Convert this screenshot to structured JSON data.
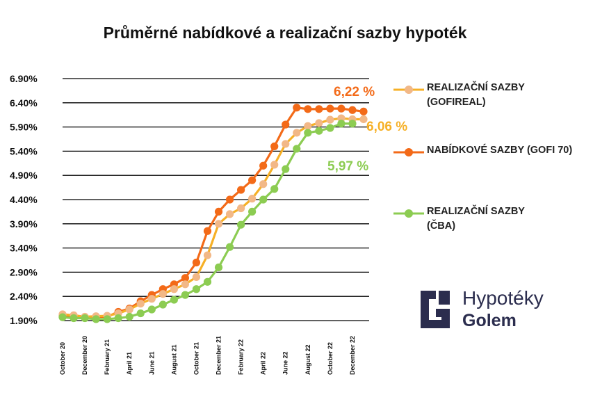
{
  "chart_data": {
    "type": "line",
    "title": "Průměrné nabídkové a realizační sazby hypoték",
    "y_ticks": [
      "1.90%",
      "2.40%",
      "2.90%",
      "3.40%",
      "3.90%",
      "4.40%",
      "4.90%",
      "5.40%",
      "5.90%",
      "6.40%",
      "6.90%"
    ],
    "ylim": [
      1.9,
      6.9
    ],
    "grid": true,
    "x": [
      "October 20",
      "November 20",
      "December 20",
      "January 21",
      "February 21",
      "March 21",
      "April 21",
      "May 21",
      "June 21",
      "July 21",
      "August 21",
      "September 21",
      "October 21",
      "November 21",
      "December 21",
      "January 22",
      "February 22",
      "March 22",
      "April 22",
      "May 22",
      "June 22",
      "July 22",
      "August 22",
      "September 22",
      "October 22",
      "November 22",
      "December 22",
      "January 23"
    ],
    "x_tick_labels": [
      "October 20",
      "",
      "December 20",
      "",
      "February 21",
      "",
      "April 21",
      "",
      "June 21",
      "",
      "August 21",
      "",
      "October 21",
      "",
      "December 21",
      "",
      "February 22",
      "",
      "April 22",
      "",
      "June 22",
      "",
      "August 22",
      "",
      "October 22",
      "",
      "December 22",
      ""
    ],
    "legend_position": "right",
    "series": [
      {
        "name": "REALIZAČNÍ SAZBY (GOFIREAL)",
        "color": "#f6b026",
        "marker_color": "#f2b887",
        "values": [
          2.03,
          2.01,
          1.98,
          1.99,
          2.0,
          2.05,
          2.13,
          2.25,
          2.35,
          2.45,
          2.55,
          2.65,
          2.8,
          3.25,
          3.9,
          4.1,
          4.22,
          4.42,
          4.72,
          5.12,
          5.55,
          5.78,
          5.92,
          5.98,
          6.05,
          6.08,
          6.06,
          6.06
        ],
        "end_label": "6,06 %",
        "end_label_color": "#f6b026"
      },
      {
        "name": "NABÍDKOVÉ SAZBY (GOFI 70)",
        "color": "#f36a18",
        "marker_color": "#f36a18",
        "values": [
          2.0,
          1.97,
          1.97,
          1.98,
          1.98,
          2.08,
          2.15,
          2.3,
          2.43,
          2.55,
          2.65,
          2.78,
          3.1,
          3.75,
          4.15,
          4.4,
          4.6,
          4.8,
          5.1,
          5.5,
          5.95,
          6.3,
          6.27,
          6.27,
          6.28,
          6.28,
          6.25,
          6.22
        ],
        "end_label": "6,22 %",
        "end_label_color": "#f36a18"
      },
      {
        "name": "REALIZAČNÍ SAZBY (ČBA)",
        "color": "#8ccc52",
        "marker_color": "#8ccc52",
        "values": [
          1.97,
          1.95,
          1.95,
          1.93,
          1.93,
          1.95,
          1.98,
          2.05,
          2.13,
          2.23,
          2.33,
          2.43,
          2.55,
          2.7,
          3.0,
          3.42,
          3.88,
          4.15,
          4.4,
          4.62,
          5.03,
          5.45,
          5.78,
          5.82,
          5.88,
          5.97,
          5.97,
          null
        ],
        "end_label": "5,97 %",
        "end_label_color": "#8ccc52"
      }
    ]
  },
  "logo": {
    "top_text": "Hypotéky",
    "bottom_text": "Golem",
    "color": "#2b2d4e",
    "icon": "golem-g-logo-icon"
  }
}
